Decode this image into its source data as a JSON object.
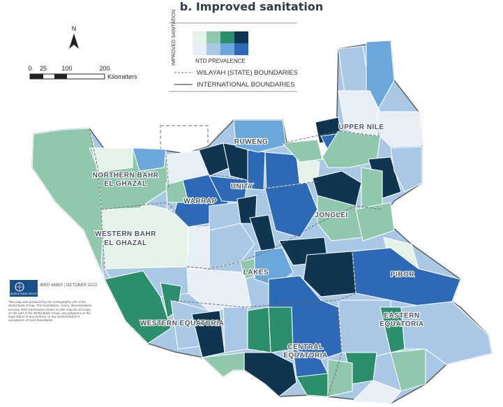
{
  "title": "b. Improved sanitation",
  "north_arrow": "N",
  "scale_bar": {
    "ticks": [
      "0",
      "25",
      "100",
      "200"
    ],
    "unit": "Kilometers"
  },
  "legend": {
    "axis_label": "IMPROVED SANITATION",
    "ntd_label": "NTD PREVALENCE",
    "colors_top": [
      "#e4f2e8",
      "#8fc8ad",
      "#2a8f6a",
      "#0f3550"
    ],
    "colors_bottom": [
      "#e8eef6",
      "#a9c8e6",
      "#6aa8dc",
      "#2c6ab8"
    ],
    "wilayah_label": "WILAYAH (STATE) BOUNDARIES",
    "intl_label": "INTERNATIONAL BOUNDARIES"
  },
  "states": [
    "UPPER NILE",
    "RUWENG",
    "NORTHERN BAHR EL GHAZAL",
    "UNITY",
    "WARRAP",
    "WESTERN BAHR EL GHAZAL",
    "JONGLEI",
    "LAKES",
    "PIBOR",
    "WESTERN EQUATORIA",
    "CENTRAL EQUATORIA",
    "EASTERN EQUATORIA"
  ],
  "credit": {
    "logo_text": "WORLD BANK GROUP",
    "ibrd": "IBRD 46863 | OCTOBER 2022",
    "note": "This map was produced by the Cartography Unit of the World Bank Group. The boundaries, colors, denominations and any other information shown on this map do not imply, on the part of the World Bank Group, any judgment on the legal status of any territory, or any endorsement or acceptance of such boundaries."
  },
  "colors": {
    "dark_navy": "#0f3550",
    "blue": "#2c6ab8",
    "teal": "#2a8f6a",
    "sage": "#8fc8ad"
  }
}
